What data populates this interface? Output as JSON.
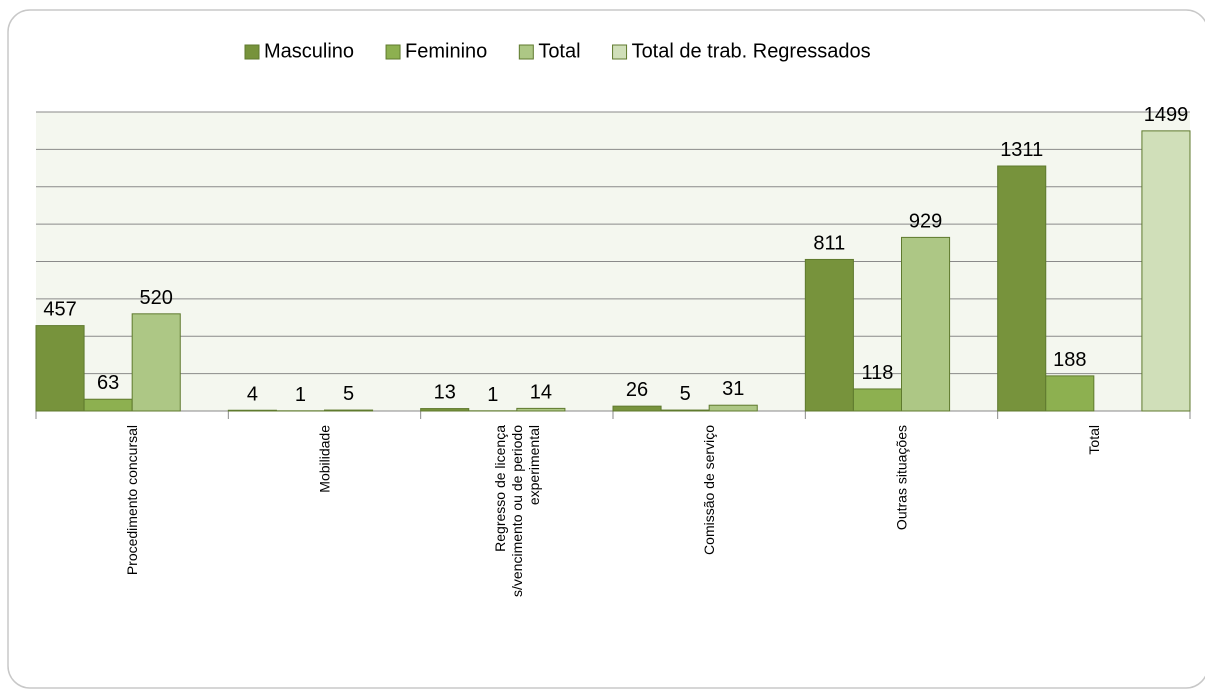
{
  "chart_data": {
    "type": "bar",
    "categories": [
      "Procedimento concursal",
      "Mobilidade",
      "Regresso de licença s/vencimento ou de periodo experimental",
      "Comissão de serviço",
      "Outras situações",
      "Total"
    ],
    "series": [
      {
        "name": "Masculino",
        "color": "#77933c",
        "values": [
          457,
          4,
          13,
          26,
          811,
          1311
        ]
      },
      {
        "name": "Feminino",
        "color": "#8db050",
        "values": [
          63,
          1,
          1,
          5,
          118,
          188
        ]
      },
      {
        "name": "Total",
        "color": "#adc785",
        "values": [
          520,
          5,
          14,
          31,
          929,
          null
        ]
      },
      {
        "name": "Total de trab. Regressados",
        "color": "#d0dfb9",
        "values": [
          null,
          null,
          null,
          null,
          null,
          1499
        ]
      }
    ],
    "ylim": [
      0,
      1600
    ],
    "yticks": [
      0,
      200,
      400,
      600,
      800,
      1000,
      1200,
      1400,
      1600
    ],
    "grid": true,
    "legend": "top"
  }
}
